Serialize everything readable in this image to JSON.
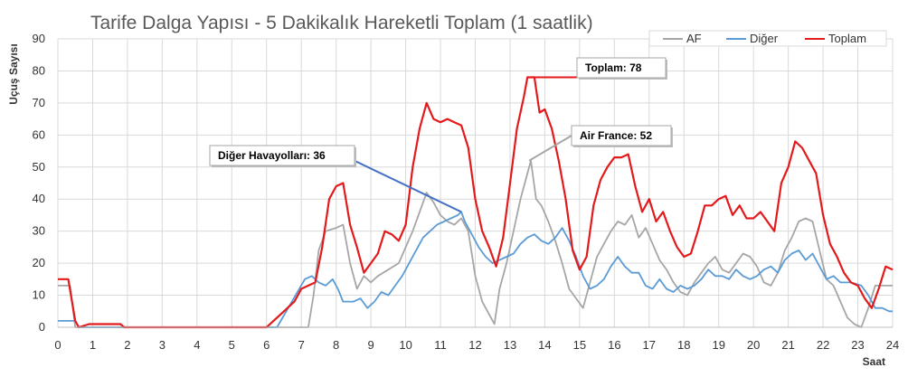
{
  "chart_data": {
    "type": "line",
    "title": "Tarife Dalga Yapısı - 5 Dakikalık Hareketli Toplam (1 saatlik)",
    "xlabel": "Saat",
    "ylabel": "Uçuş Sayısı",
    "xlim": [
      0,
      24
    ],
    "ylim": [
      0,
      90
    ],
    "x_ticks": [
      "0",
      "1",
      "2",
      "3",
      "4",
      "5",
      "6",
      "7",
      "8",
      "9",
      "10",
      "11",
      "12",
      "13",
      "14",
      "15",
      "16",
      "17",
      "18",
      "19",
      "20",
      "21",
      "22",
      "23",
      "24"
    ],
    "y_ticks": [
      "0",
      "10",
      "20",
      "30",
      "40",
      "50",
      "60",
      "70",
      "80",
      "90"
    ],
    "grid": true,
    "legend_position": "top-right",
    "series": [
      {
        "name": "AF",
        "color": "#a6a6a6",
        "points": [
          [
            0,
            13
          ],
          [
            0.35,
            13
          ],
          [
            0.5,
            0
          ],
          [
            1.3,
            0
          ],
          [
            2,
            0
          ],
          [
            7.2,
            0
          ],
          [
            7.35,
            10
          ],
          [
            7.5,
            24
          ],
          [
            7.7,
            30
          ],
          [
            8,
            31
          ],
          [
            8.2,
            32
          ],
          [
            8.4,
            20
          ],
          [
            8.6,
            12
          ],
          [
            8.8,
            16
          ],
          [
            9.0,
            14
          ],
          [
            9.2,
            16
          ],
          [
            9.5,
            18
          ],
          [
            9.8,
            20
          ],
          [
            10.0,
            25
          ],
          [
            10.2,
            30
          ],
          [
            10.4,
            36
          ],
          [
            10.6,
            42
          ],
          [
            10.8,
            39
          ],
          [
            11.0,
            35
          ],
          [
            11.2,
            33
          ],
          [
            11.4,
            32
          ],
          [
            11.6,
            34
          ],
          [
            11.8,
            30
          ],
          [
            12.0,
            16
          ],
          [
            12.2,
            8
          ],
          [
            12.4,
            4
          ],
          [
            12.55,
            1
          ],
          [
            12.7,
            12
          ],
          [
            12.9,
            20
          ],
          [
            13.1,
            30
          ],
          [
            13.3,
            40
          ],
          [
            13.5,
            48
          ],
          [
            13.6,
            52
          ],
          [
            13.75,
            40
          ],
          [
            13.9,
            38
          ],
          [
            14.1,
            33
          ],
          [
            14.3,
            27
          ],
          [
            14.5,
            20
          ],
          [
            14.7,
            12
          ],
          [
            14.9,
            9
          ],
          [
            15.1,
            6
          ],
          [
            15.3,
            14
          ],
          [
            15.5,
            22
          ],
          [
            15.7,
            26
          ],
          [
            15.9,
            30
          ],
          [
            16.1,
            33
          ],
          [
            16.3,
            32
          ],
          [
            16.5,
            35
          ],
          [
            16.7,
            28
          ],
          [
            16.9,
            31
          ],
          [
            17.1,
            26
          ],
          [
            17.3,
            21
          ],
          [
            17.5,
            18
          ],
          [
            17.7,
            14
          ],
          [
            17.9,
            11
          ],
          [
            18.1,
            10
          ],
          [
            18.3,
            14
          ],
          [
            18.5,
            17
          ],
          [
            18.7,
            20
          ],
          [
            18.9,
            22
          ],
          [
            19.1,
            18
          ],
          [
            19.3,
            17
          ],
          [
            19.5,
            20
          ],
          [
            19.7,
            23
          ],
          [
            19.9,
            22
          ],
          [
            20.1,
            19
          ],
          [
            20.3,
            14
          ],
          [
            20.5,
            13
          ],
          [
            20.7,
            17
          ],
          [
            20.9,
            24
          ],
          [
            21.1,
            28
          ],
          [
            21.3,
            33
          ],
          [
            21.5,
            34
          ],
          [
            21.7,
            33
          ],
          [
            21.9,
            24
          ],
          [
            22.1,
            15
          ],
          [
            22.3,
            13
          ],
          [
            22.5,
            8
          ],
          [
            22.7,
            3
          ],
          [
            22.9,
            1
          ],
          [
            23.1,
            0
          ],
          [
            23.3,
            6
          ],
          [
            23.5,
            13
          ],
          [
            24,
            13
          ]
        ]
      },
      {
        "name": "Diğer",
        "color": "#5b9bd5",
        "points": [
          [
            0,
            2
          ],
          [
            0.5,
            2
          ],
          [
            0.6,
            0
          ],
          [
            1,
            0
          ],
          [
            6,
            0
          ],
          [
            6.3,
            0
          ],
          [
            7.1,
            15
          ],
          [
            7.3,
            16
          ],
          [
            7.5,
            14
          ],
          [
            7.7,
            13
          ],
          [
            7.9,
            15
          ],
          [
            8.05,
            12
          ],
          [
            8.2,
            8
          ],
          [
            8.5,
            8
          ],
          [
            8.7,
            9
          ],
          [
            8.9,
            6
          ],
          [
            9.1,
            8
          ],
          [
            9.3,
            11
          ],
          [
            9.5,
            10
          ],
          [
            9.7,
            13
          ],
          [
            9.9,
            16
          ],
          [
            10.1,
            20
          ],
          [
            10.3,
            24
          ],
          [
            10.5,
            28
          ],
          [
            10.7,
            30
          ],
          [
            10.9,
            32
          ],
          [
            11.1,
            33
          ],
          [
            11.3,
            34
          ],
          [
            11.5,
            35
          ],
          [
            11.6,
            36
          ],
          [
            11.7,
            33
          ],
          [
            11.9,
            29
          ],
          [
            12.1,
            25
          ],
          [
            12.3,
            22
          ],
          [
            12.5,
            20
          ],
          [
            12.7,
            21
          ],
          [
            12.9,
            22
          ],
          [
            13.1,
            23
          ],
          [
            13.3,
            26
          ],
          [
            13.5,
            28
          ],
          [
            13.7,
            29
          ],
          [
            13.9,
            27
          ],
          [
            14.1,
            26
          ],
          [
            14.3,
            28
          ],
          [
            14.5,
            31
          ],
          [
            14.7,
            27
          ],
          [
            14.9,
            22
          ],
          [
            15.1,
            16
          ],
          [
            15.3,
            12
          ],
          [
            15.5,
            13
          ],
          [
            15.7,
            15
          ],
          [
            15.9,
            19
          ],
          [
            16.1,
            22
          ],
          [
            16.3,
            19
          ],
          [
            16.5,
            17
          ],
          [
            16.7,
            17
          ],
          [
            16.9,
            13
          ],
          [
            17.1,
            12
          ],
          [
            17.3,
            15
          ],
          [
            17.5,
            12
          ],
          [
            17.7,
            11
          ],
          [
            17.9,
            13
          ],
          [
            18.1,
            12
          ],
          [
            18.3,
            13
          ],
          [
            18.5,
            15
          ],
          [
            18.7,
            18
          ],
          [
            18.9,
            16
          ],
          [
            19.1,
            16
          ],
          [
            19.3,
            15
          ],
          [
            19.5,
            18
          ],
          [
            19.7,
            16
          ],
          [
            19.9,
            15
          ],
          [
            20.1,
            16
          ],
          [
            20.3,
            18
          ],
          [
            20.5,
            19
          ],
          [
            20.7,
            17
          ],
          [
            20.9,
            21
          ],
          [
            21.1,
            23
          ],
          [
            21.3,
            24
          ],
          [
            21.5,
            21
          ],
          [
            21.7,
            23
          ],
          [
            21.9,
            19
          ],
          [
            22.1,
            15
          ],
          [
            22.3,
            16
          ],
          [
            22.5,
            14
          ],
          [
            22.8,
            14
          ],
          [
            23.1,
            13
          ],
          [
            23.3,
            10
          ],
          [
            23.5,
            6
          ],
          [
            23.7,
            6
          ],
          [
            23.9,
            5
          ],
          [
            24,
            5
          ]
        ]
      },
      {
        "name": "Toplam",
        "color": "#e31a1c",
        "points": [
          [
            0,
            15
          ],
          [
            0.3,
            15
          ],
          [
            0.5,
            2
          ],
          [
            0.6,
            0
          ],
          [
            0.9,
            1
          ],
          [
            1.8,
            1
          ],
          [
            1.9,
            0
          ],
          [
            6,
            0
          ],
          [
            6.2,
            2
          ],
          [
            6.5,
            5
          ],
          [
            6.8,
            8
          ],
          [
            7.0,
            12
          ],
          [
            7.2,
            13
          ],
          [
            7.4,
            14
          ],
          [
            7.6,
            25
          ],
          [
            7.8,
            40
          ],
          [
            8.0,
            44
          ],
          [
            8.2,
            45
          ],
          [
            8.4,
            32
          ],
          [
            8.6,
            25
          ],
          [
            8.8,
            17
          ],
          [
            9.0,
            20
          ],
          [
            9.2,
            23
          ],
          [
            9.4,
            30
          ],
          [
            9.6,
            29
          ],
          [
            9.8,
            27
          ],
          [
            10.0,
            32
          ],
          [
            10.2,
            50
          ],
          [
            10.4,
            62
          ],
          [
            10.6,
            70
          ],
          [
            10.8,
            65
          ],
          [
            11.0,
            64
          ],
          [
            11.2,
            65
          ],
          [
            11.4,
            64
          ],
          [
            11.6,
            63
          ],
          [
            11.8,
            56
          ],
          [
            12.0,
            40
          ],
          [
            12.2,
            30
          ],
          [
            12.4,
            25
          ],
          [
            12.6,
            19
          ],
          [
            12.8,
            28
          ],
          [
            13.0,
            45
          ],
          [
            13.2,
            62
          ],
          [
            13.4,
            72
          ],
          [
            13.5,
            78
          ],
          [
            13.7,
            78
          ],
          [
            13.85,
            67
          ],
          [
            14.0,
            68
          ],
          [
            14.2,
            62
          ],
          [
            14.4,
            52
          ],
          [
            14.6,
            40
          ],
          [
            14.8,
            24
          ],
          [
            15.0,
            18
          ],
          [
            15.2,
            22
          ],
          [
            15.4,
            38
          ],
          [
            15.6,
            46
          ],
          [
            15.8,
            50
          ],
          [
            16.0,
            53
          ],
          [
            16.2,
            53
          ],
          [
            16.4,
            54
          ],
          [
            16.6,
            44
          ],
          [
            16.8,
            36
          ],
          [
            17.0,
            40
          ],
          [
            17.2,
            33
          ],
          [
            17.4,
            36
          ],
          [
            17.6,
            30
          ],
          [
            17.8,
            25
          ],
          [
            18.0,
            22
          ],
          [
            18.2,
            23
          ],
          [
            18.4,
            30
          ],
          [
            18.6,
            38
          ],
          [
            18.8,
            38
          ],
          [
            19.0,
            40
          ],
          [
            19.2,
            41
          ],
          [
            19.4,
            35
          ],
          [
            19.6,
            38
          ],
          [
            19.8,
            34
          ],
          [
            20.0,
            34
          ],
          [
            20.2,
            36
          ],
          [
            20.4,
            33
          ],
          [
            20.6,
            30
          ],
          [
            20.8,
            45
          ],
          [
            21.0,
            50
          ],
          [
            21.2,
            58
          ],
          [
            21.4,
            56
          ],
          [
            21.6,
            52
          ],
          [
            21.8,
            48
          ],
          [
            22.0,
            35
          ],
          [
            22.2,
            26
          ],
          [
            22.4,
            22
          ],
          [
            22.6,
            17
          ],
          [
            22.8,
            14
          ],
          [
            23.0,
            13
          ],
          [
            23.2,
            9
          ],
          [
            23.4,
            6
          ],
          [
            23.6,
            12
          ],
          [
            23.8,
            19
          ],
          [
            24,
            18
          ]
        ]
      }
    ],
    "annotations": [
      {
        "text": "Toplam: 78",
        "series": "Toplam",
        "point": [
          13.55,
          78
        ],
        "color": "#e31a1c"
      },
      {
        "text": "Air France: 52",
        "series": "AF",
        "point": [
          13.55,
          52
        ],
        "color": "#a6a6a6"
      },
      {
        "text": "Diğer Havayolları: 36",
        "series": "Diğer",
        "point": [
          11.6,
          36
        ],
        "color": "#4472c4"
      }
    ]
  }
}
